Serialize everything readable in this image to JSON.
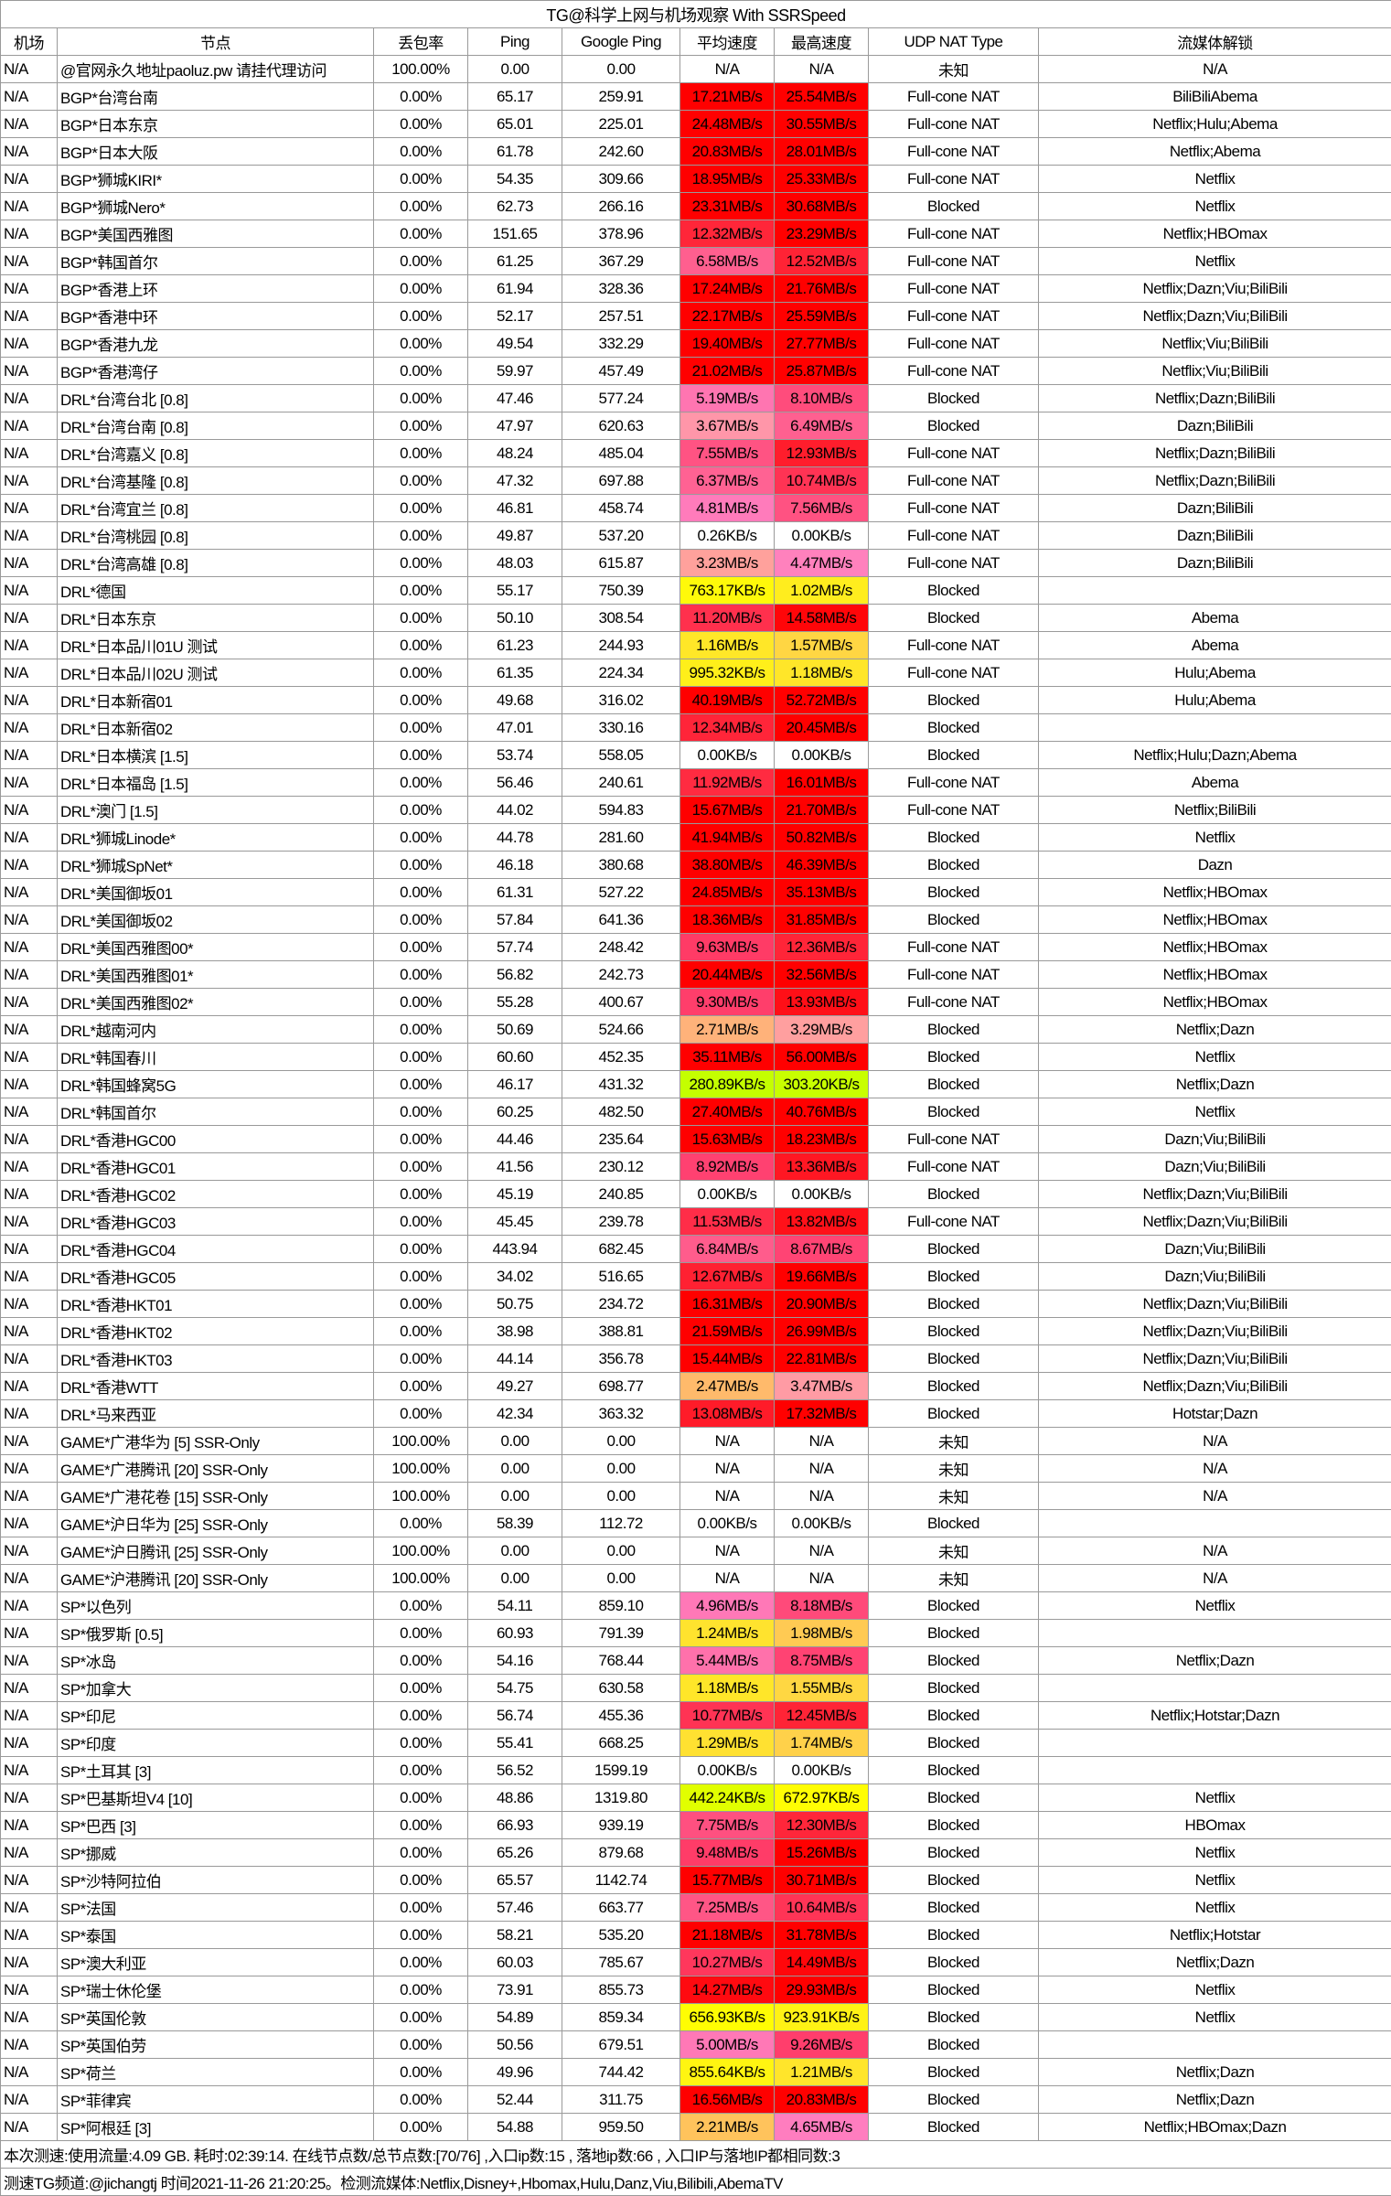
{
  "title": "TG@科学上网与机场观察 With SSRSpeed",
  "headers": [
    "机场",
    "节点",
    "丢包率",
    "Ping",
    "Google Ping",
    "平均速度",
    "最高速度",
    "UDP NAT Type",
    "流媒体解锁"
  ],
  "speed_color_scale": [
    [
      0,
      "#ffffff"
    ],
    [
      0.25,
      "#c0ff00"
    ],
    [
      0.6,
      "#ffff00"
    ],
    [
      1.5,
      "#ffd840"
    ],
    [
      2.3,
      "#ffc060"
    ],
    [
      3.3,
      "#ff9fa0"
    ],
    [
      4.6,
      "#ff7ec0"
    ],
    [
      6.5,
      "#ff6090"
    ],
    [
      9.0,
      "#ff4070"
    ],
    [
      12.0,
      "#ff2a40"
    ],
    [
      15.0,
      "#ff0000"
    ]
  ],
  "rows": [
    [
      "N/A",
      "@官网永久地址paoluz.pw 请挂代理访问",
      "100.00%",
      "0.00",
      "0.00",
      "N/A",
      "N/A",
      "未知",
      "N/A"
    ],
    [
      "N/A",
      "BGP*台湾台南",
      "0.00%",
      "65.17",
      "259.91",
      "17.21MB/s",
      "25.54MB/s",
      "Full-cone NAT",
      "BiliBiliAbema"
    ],
    [
      "N/A",
      "BGP*日本东京",
      "0.00%",
      "65.01",
      "225.01",
      "24.48MB/s",
      "30.55MB/s",
      "Full-cone NAT",
      "Netflix;Hulu;Abema"
    ],
    [
      "N/A",
      "BGP*日本大阪",
      "0.00%",
      "61.78",
      "242.60",
      "20.83MB/s",
      "28.01MB/s",
      "Full-cone NAT",
      "Netflix;Abema"
    ],
    [
      "N/A",
      "BGP*狮城KIRI*",
      "0.00%",
      "54.35",
      "309.66",
      "18.95MB/s",
      "25.33MB/s",
      "Full-cone NAT",
      "Netflix"
    ],
    [
      "N/A",
      "BGP*狮城Nero*",
      "0.00%",
      "62.73",
      "266.16",
      "23.31MB/s",
      "30.68MB/s",
      "Blocked",
      "Netflix"
    ],
    [
      "N/A",
      "BGP*美国西雅图",
      "0.00%",
      "151.65",
      "378.96",
      "12.32MB/s",
      "23.29MB/s",
      "Full-cone NAT",
      "Netflix;HBOmax"
    ],
    [
      "N/A",
      "BGP*韩国首尔",
      "0.00%",
      "61.25",
      "367.29",
      "6.58MB/s",
      "12.52MB/s",
      "Full-cone NAT",
      "Netflix"
    ],
    [
      "N/A",
      "BGP*香港上环",
      "0.00%",
      "61.94",
      "328.36",
      "17.24MB/s",
      "21.76MB/s",
      "Full-cone NAT",
      "Netflix;Dazn;Viu;BiliBili"
    ],
    [
      "N/A",
      "BGP*香港中环",
      "0.00%",
      "52.17",
      "257.51",
      "22.17MB/s",
      "25.59MB/s",
      "Full-cone NAT",
      "Netflix;Dazn;Viu;BiliBili"
    ],
    [
      "N/A",
      "BGP*香港九龙",
      "0.00%",
      "49.54",
      "332.29",
      "19.40MB/s",
      "27.77MB/s",
      "Full-cone NAT",
      "Netflix;Viu;BiliBili"
    ],
    [
      "N/A",
      "BGP*香港湾仔",
      "0.00%",
      "59.97",
      "457.49",
      "21.02MB/s",
      "25.87MB/s",
      "Full-cone NAT",
      "Netflix;Viu;BiliBili"
    ],
    [
      "N/A",
      "DRL*台湾台北 [0.8]",
      "0.00%",
      "47.46",
      "577.24",
      "5.19MB/s",
      "8.10MB/s",
      "Blocked",
      "Netflix;Dazn;BiliBili"
    ],
    [
      "N/A",
      "DRL*台湾台南 [0.8]",
      "0.00%",
      "47.97",
      "620.63",
      "3.67MB/s",
      "6.49MB/s",
      "Blocked",
      "Dazn;BiliBili"
    ],
    [
      "N/A",
      "DRL*台湾嘉义 [0.8]",
      "0.00%",
      "48.24",
      "485.04",
      "7.55MB/s",
      "12.93MB/s",
      "Full-cone NAT",
      "Netflix;Dazn;BiliBili"
    ],
    [
      "N/A",
      "DRL*台湾基隆 [0.8]",
      "0.00%",
      "47.32",
      "697.88",
      "6.37MB/s",
      "10.74MB/s",
      "Full-cone NAT",
      "Netflix;Dazn;BiliBili"
    ],
    [
      "N/A",
      "DRL*台湾宜兰 [0.8]",
      "0.00%",
      "46.81",
      "458.74",
      "4.81MB/s",
      "7.56MB/s",
      "Full-cone NAT",
      "Dazn;BiliBili"
    ],
    [
      "N/A",
      "DRL*台湾桃园 [0.8]",
      "0.00%",
      "49.87",
      "537.20",
      "0.26KB/s",
      "0.00KB/s",
      "Full-cone NAT",
      "Dazn;BiliBili"
    ],
    [
      "N/A",
      "DRL*台湾高雄 [0.8]",
      "0.00%",
      "48.03",
      "615.87",
      "3.23MB/s",
      "4.47MB/s",
      "Full-cone NAT",
      "Dazn;BiliBili"
    ],
    [
      "N/A",
      "DRL*德国",
      "0.00%",
      "55.17",
      "750.39",
      "763.17KB/s",
      "1.02MB/s",
      "Blocked",
      ""
    ],
    [
      "N/A",
      "DRL*日本东京",
      "0.00%",
      "50.10",
      "308.54",
      "11.20MB/s",
      "14.58MB/s",
      "Blocked",
      "Abema"
    ],
    [
      "N/A",
      "DRL*日本品川01U 测试",
      "0.00%",
      "61.23",
      "244.93",
      "1.16MB/s",
      "1.57MB/s",
      "Full-cone NAT",
      "Abema"
    ],
    [
      "N/A",
      "DRL*日本品川02U 测试",
      "0.00%",
      "61.35",
      "224.34",
      "995.32KB/s",
      "1.18MB/s",
      "Full-cone NAT",
      "Hulu;Abema"
    ],
    [
      "N/A",
      "DRL*日本新宿01",
      "0.00%",
      "49.68",
      "316.02",
      "40.19MB/s",
      "52.72MB/s",
      "Blocked",
      "Hulu;Abema"
    ],
    [
      "N/A",
      "DRL*日本新宿02",
      "0.00%",
      "47.01",
      "330.16",
      "12.34MB/s",
      "20.45MB/s",
      "Blocked",
      ""
    ],
    [
      "N/A",
      "DRL*日本横滨 [1.5]",
      "0.00%",
      "53.74",
      "558.05",
      "0.00KB/s",
      "0.00KB/s",
      "Blocked",
      "Netflix;Hulu;Dazn;Abema"
    ],
    [
      "N/A",
      "DRL*日本福岛 [1.5]",
      "0.00%",
      "56.46",
      "240.61",
      "11.92MB/s",
      "16.01MB/s",
      "Full-cone NAT",
      "Abema"
    ],
    [
      "N/A",
      "DRL*澳门 [1.5]",
      "0.00%",
      "44.02",
      "594.83",
      "15.67MB/s",
      "21.70MB/s",
      "Full-cone NAT",
      "Netflix;BiliBili"
    ],
    [
      "N/A",
      "DRL*狮城Linode*",
      "0.00%",
      "44.78",
      "281.60",
      "41.94MB/s",
      "50.82MB/s",
      "Blocked",
      "Netflix"
    ],
    [
      "N/A",
      "DRL*狮城SpNet*",
      "0.00%",
      "46.18",
      "380.68",
      "38.80MB/s",
      "46.39MB/s",
      "Blocked",
      "Dazn"
    ],
    [
      "N/A",
      "DRL*美国御坂01",
      "0.00%",
      "61.31",
      "527.22",
      "24.85MB/s",
      "35.13MB/s",
      "Blocked",
      "Netflix;HBOmax"
    ],
    [
      "N/A",
      "DRL*美国御坂02",
      "0.00%",
      "57.84",
      "641.36",
      "18.36MB/s",
      "31.85MB/s",
      "Blocked",
      "Netflix;HBOmax"
    ],
    [
      "N/A",
      "DRL*美国西雅图00*",
      "0.00%",
      "57.74",
      "248.42",
      "9.63MB/s",
      "12.36MB/s",
      "Full-cone NAT",
      "Netflix;HBOmax"
    ],
    [
      "N/A",
      "DRL*美国西雅图01*",
      "0.00%",
      "56.82",
      "242.73",
      "20.44MB/s",
      "32.56MB/s",
      "Full-cone NAT",
      "Netflix;HBOmax"
    ],
    [
      "N/A",
      "DRL*美国西雅图02*",
      "0.00%",
      "55.28",
      "400.67",
      "9.30MB/s",
      "13.93MB/s",
      "Full-cone NAT",
      "Netflix;HBOmax"
    ],
    [
      "N/A",
      "DRL*越南河内",
      "0.00%",
      "50.69",
      "524.66",
      "2.71MB/s",
      "3.29MB/s",
      "Blocked",
      "Netflix;Dazn"
    ],
    [
      "N/A",
      "DRL*韩国春川",
      "0.00%",
      "60.60",
      "452.35",
      "35.11MB/s",
      "56.00MB/s",
      "Blocked",
      "Netflix"
    ],
    [
      "N/A",
      "DRL*韩国蜂窝5G",
      "0.00%",
      "46.17",
      "431.32",
      "280.89KB/s",
      "303.20KB/s",
      "Blocked",
      "Netflix;Dazn"
    ],
    [
      "N/A",
      "DRL*韩国首尔",
      "0.00%",
      "60.25",
      "482.50",
      "27.40MB/s",
      "40.76MB/s",
      "Blocked",
      "Netflix"
    ],
    [
      "N/A",
      "DRL*香港HGC00",
      "0.00%",
      "44.46",
      "235.64",
      "15.63MB/s",
      "18.23MB/s",
      "Full-cone NAT",
      "Dazn;Viu;BiliBili"
    ],
    [
      "N/A",
      "DRL*香港HGC01",
      "0.00%",
      "41.56",
      "230.12",
      "8.92MB/s",
      "13.36MB/s",
      "Full-cone NAT",
      "Dazn;Viu;BiliBili"
    ],
    [
      "N/A",
      "DRL*香港HGC02",
      "0.00%",
      "45.19",
      "240.85",
      "0.00KB/s",
      "0.00KB/s",
      "Blocked",
      "Netflix;Dazn;Viu;BiliBili"
    ],
    [
      "N/A",
      "DRL*香港HGC03",
      "0.00%",
      "45.45",
      "239.78",
      "11.53MB/s",
      "13.82MB/s",
      "Full-cone NAT",
      "Netflix;Dazn;Viu;BiliBili"
    ],
    [
      "N/A",
      "DRL*香港HGC04",
      "0.00%",
      "443.94",
      "682.45",
      "6.84MB/s",
      "8.67MB/s",
      "Blocked",
      "Dazn;Viu;BiliBili"
    ],
    [
      "N/A",
      "DRL*香港HGC05",
      "0.00%",
      "34.02",
      "516.65",
      "12.67MB/s",
      "19.66MB/s",
      "Blocked",
      "Dazn;Viu;BiliBili"
    ],
    [
      "N/A",
      "DRL*香港HKT01",
      "0.00%",
      "50.75",
      "234.72",
      "16.31MB/s",
      "20.90MB/s",
      "Blocked",
      "Netflix;Dazn;Viu;BiliBili"
    ],
    [
      "N/A",
      "DRL*香港HKT02",
      "0.00%",
      "38.98",
      "388.81",
      "21.59MB/s",
      "26.99MB/s",
      "Blocked",
      "Netflix;Dazn;Viu;BiliBili"
    ],
    [
      "N/A",
      "DRL*香港HKT03",
      "0.00%",
      "44.14",
      "356.78",
      "15.44MB/s",
      "22.81MB/s",
      "Blocked",
      "Netflix;Dazn;Viu;BiliBili"
    ],
    [
      "N/A",
      "DRL*香港WTT",
      "0.00%",
      "49.27",
      "698.77",
      "2.47MB/s",
      "3.47MB/s",
      "Blocked",
      "Netflix;Dazn;Viu;BiliBili"
    ],
    [
      "N/A",
      "DRL*马来西亚",
      "0.00%",
      "42.34",
      "363.32",
      "13.08MB/s",
      "17.32MB/s",
      "Blocked",
      "Hotstar;Dazn"
    ],
    [
      "N/A",
      "GAME*广港华为 [5] SSR-Only",
      "100.00%",
      "0.00",
      "0.00",
      "N/A",
      "N/A",
      "未知",
      "N/A"
    ],
    [
      "N/A",
      "GAME*广港腾讯 [20] SSR-Only",
      "100.00%",
      "0.00",
      "0.00",
      "N/A",
      "N/A",
      "未知",
      "N/A"
    ],
    [
      "N/A",
      "GAME*广港花卷 [15] SSR-Only",
      "100.00%",
      "0.00",
      "0.00",
      "N/A",
      "N/A",
      "未知",
      "N/A"
    ],
    [
      "N/A",
      "GAME*沪日华为 [25] SSR-Only",
      "0.00%",
      "58.39",
      "112.72",
      "0.00KB/s",
      "0.00KB/s",
      "Blocked",
      ""
    ],
    [
      "N/A",
      "GAME*沪日腾讯 [25] SSR-Only",
      "100.00%",
      "0.00",
      "0.00",
      "N/A",
      "N/A",
      "未知",
      "N/A"
    ],
    [
      "N/A",
      "GAME*沪港腾讯 [20] SSR-Only",
      "100.00%",
      "0.00",
      "0.00",
      "N/A",
      "N/A",
      "未知",
      "N/A"
    ],
    [
      "N/A",
      "SP*以色列",
      "0.00%",
      "54.11",
      "859.10",
      "4.96MB/s",
      "8.18MB/s",
      "Blocked",
      "Netflix"
    ],
    [
      "N/A",
      "SP*俄罗斯 [0.5]",
      "0.00%",
      "60.93",
      "791.39",
      "1.24MB/s",
      "1.98MB/s",
      "Blocked",
      ""
    ],
    [
      "N/A",
      "SP*冰岛",
      "0.00%",
      "54.16",
      "768.44",
      "5.44MB/s",
      "8.75MB/s",
      "Blocked",
      "Netflix;Dazn"
    ],
    [
      "N/A",
      "SP*加拿大",
      "0.00%",
      "54.75",
      "630.58",
      "1.18MB/s",
      "1.55MB/s",
      "Blocked",
      ""
    ],
    [
      "N/A",
      "SP*印尼",
      "0.00%",
      "56.74",
      "455.36",
      "10.77MB/s",
      "12.45MB/s",
      "Blocked",
      "Netflix;Hotstar;Dazn"
    ],
    [
      "N/A",
      "SP*印度",
      "0.00%",
      "55.41",
      "668.25",
      "1.29MB/s",
      "1.74MB/s",
      "Blocked",
      ""
    ],
    [
      "N/A",
      "SP*土耳其 [3]",
      "0.00%",
      "56.52",
      "1599.19",
      "0.00KB/s",
      "0.00KB/s",
      "Blocked",
      ""
    ],
    [
      "N/A",
      "SP*巴基斯坦V4 [10]",
      "0.00%",
      "48.86",
      "1319.80",
      "442.24KB/s",
      "672.97KB/s",
      "Blocked",
      "Netflix"
    ],
    [
      "N/A",
      "SP*巴西 [3]",
      "0.00%",
      "66.93",
      "939.19",
      "7.75MB/s",
      "12.30MB/s",
      "Blocked",
      "HBOmax"
    ],
    [
      "N/A",
      "SP*挪威",
      "0.00%",
      "65.26",
      "879.68",
      "9.48MB/s",
      "15.26MB/s",
      "Blocked",
      "Netflix"
    ],
    [
      "N/A",
      "SP*沙特阿拉伯",
      "0.00%",
      "65.57",
      "1142.74",
      "15.77MB/s",
      "30.71MB/s",
      "Blocked",
      "Netflix"
    ],
    [
      "N/A",
      "SP*法国",
      "0.00%",
      "57.46",
      "663.77",
      "7.25MB/s",
      "10.64MB/s",
      "Blocked",
      "Netflix"
    ],
    [
      "N/A",
      "SP*泰国",
      "0.00%",
      "58.21",
      "535.20",
      "21.18MB/s",
      "31.78MB/s",
      "Blocked",
      "Netflix;Hotstar"
    ],
    [
      "N/A",
      "SP*澳大利亚",
      "0.00%",
      "60.03",
      "785.67",
      "10.27MB/s",
      "14.49MB/s",
      "Blocked",
      "Netflix;Dazn"
    ],
    [
      "N/A",
      "SP*瑞士休伦堡",
      "0.00%",
      "73.91",
      "855.73",
      "14.27MB/s",
      "29.93MB/s",
      "Blocked",
      "Netflix"
    ],
    [
      "N/A",
      "SP*英国伦敦",
      "0.00%",
      "54.89",
      "859.34",
      "656.93KB/s",
      "923.91KB/s",
      "Blocked",
      "Netflix"
    ],
    [
      "N/A",
      "SP*英国伯劳",
      "0.00%",
      "50.56",
      "679.51",
      "5.00MB/s",
      "9.26MB/s",
      "Blocked",
      ""
    ],
    [
      "N/A",
      "SP*荷兰",
      "0.00%",
      "49.96",
      "744.42",
      "855.64KB/s",
      "1.21MB/s",
      "Blocked",
      "Netflix;Dazn"
    ],
    [
      "N/A",
      "SP*菲律宾",
      "0.00%",
      "52.44",
      "311.75",
      "16.56MB/s",
      "20.83MB/s",
      "Blocked",
      "Netflix;Dazn"
    ],
    [
      "N/A",
      "SP*阿根廷 [3]",
      "0.00%",
      "54.88",
      "959.50",
      "2.21MB/s",
      "4.65MB/s",
      "Blocked",
      "Netflix;HBOmax;Dazn"
    ]
  ],
  "footer": {
    "summary": "本次测速:使用流量:4.09 GB. 耗时:02:39:14. 在线节点数/总节点数:[70/76] ,入口ip数:15 , 落地ip数:66 , 入口IP与落地IP都相同数:3",
    "channel": "测速TG频道:@jichangtj 时间2021-11-26 21:20:25。检测流媒体:Netflix,Disney+,Hbomax,Hulu,Danz,Viu,Bilibili,AbemaTV"
  }
}
